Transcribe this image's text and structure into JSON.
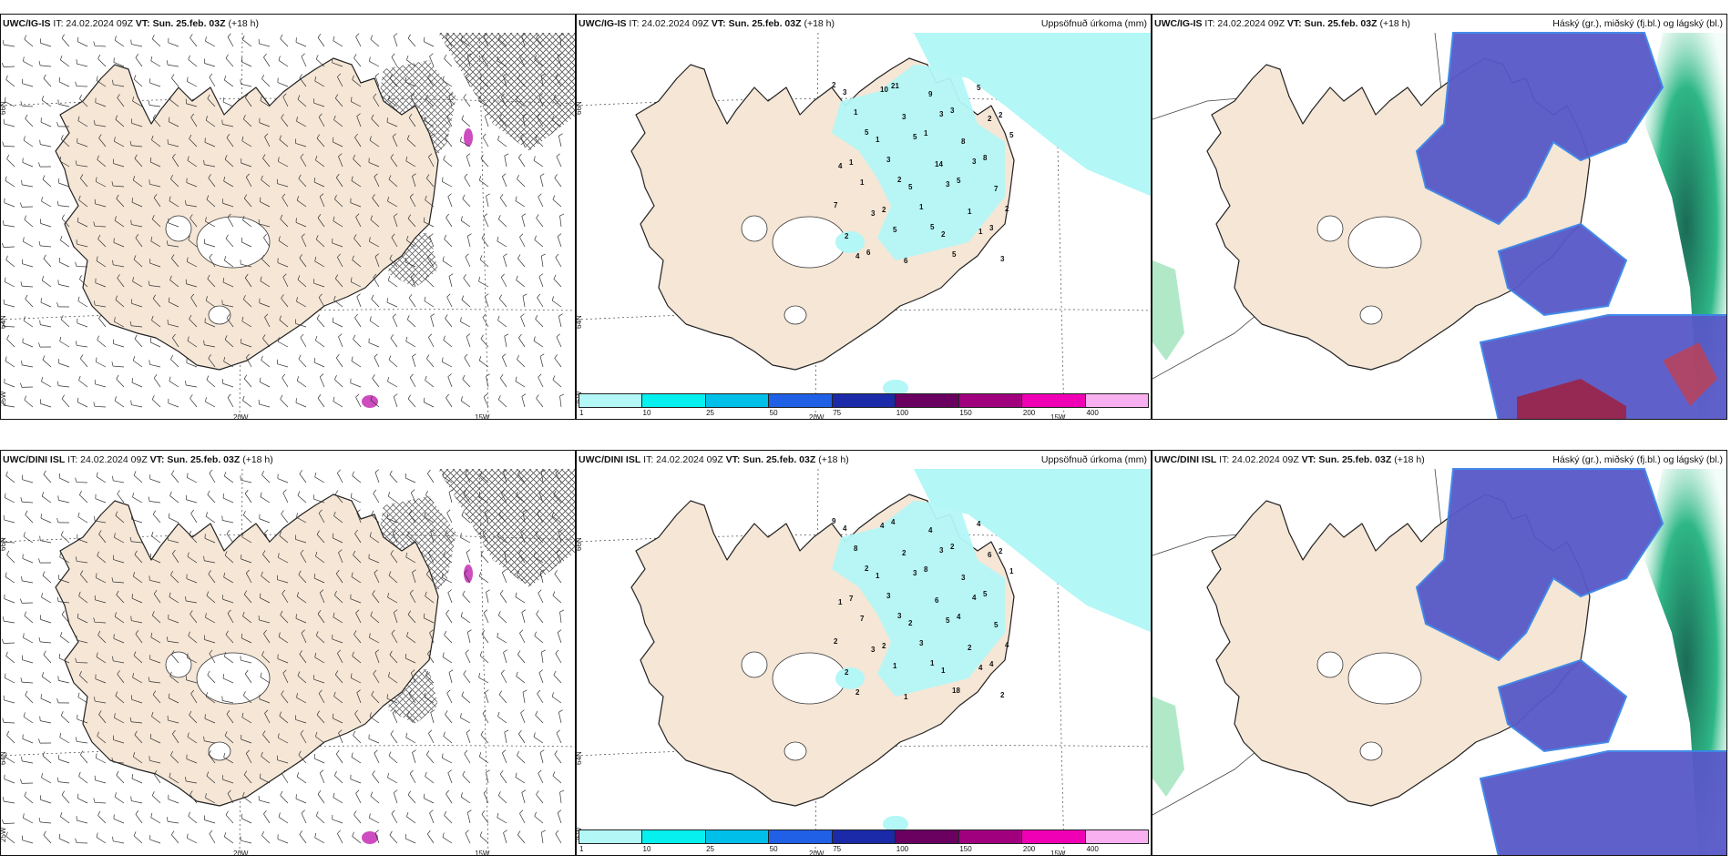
{
  "rows": [
    {
      "model": "UWC/IG-IS",
      "panels": [
        {
          "type": "wind",
          "model": "UWC/IG-IS",
          "it": "IT: 24.02.2024 09Z",
          "vt": "VT: Sun. 25.feb. 03Z",
          "lead": "(+18 h)",
          "right": ""
        },
        {
          "type": "precip",
          "model": "UWC/IG-IS",
          "it": "IT: 24.02.2024 09Z",
          "vt": "VT: Sun. 25.feb. 03Z",
          "lead": "(+18 h)",
          "right": "Uppsöfnuð úrkoma (mm)"
        },
        {
          "type": "clouds",
          "model": "UWC/IG-IS",
          "it": "IT: 24.02.2024 09Z",
          "vt": "VT: Sun. 25.feb. 03Z",
          "lead": "(+18 h)",
          "right": "Háský (gr.), miðský (fj.bl.) og lágský (bl.)"
        }
      ],
      "precip_values": [
        "2",
        "10",
        "9",
        "5",
        "3",
        "21",
        "3",
        "2",
        "1",
        "3",
        "3",
        "2",
        "5",
        "5",
        "8",
        "5",
        "1",
        "1",
        "3",
        "4",
        "3",
        "14",
        "8",
        "1",
        "2",
        "3",
        "7",
        "1",
        "5",
        "5",
        "2",
        "3",
        "1",
        "1",
        "7",
        "2",
        "5",
        "1",
        "2",
        "5",
        "2",
        "3",
        "4",
        "6",
        "5",
        "3",
        "6"
      ]
    },
    {
      "model": "UWC/DINI ISL",
      "panels": [
        {
          "type": "wind",
          "model": "UWC/DINI ISL",
          "it": "IT: 24.02.2024 09Z",
          "vt": "VT: Sun. 25.feb. 03Z",
          "lead": "(+18 h)",
          "right": ""
        },
        {
          "type": "precip",
          "model": "UWC/DINI ISL",
          "it": "IT: 24.02.2024 09Z",
          "vt": "VT: Sun. 25.feb. 03Z",
          "lead": "(+18 h)",
          "right": "Uppsöfnuð úrkoma (mm)"
        },
        {
          "type": "clouds",
          "model": "UWC/DINI ISL",
          "it": "IT: 24.02.2024 09Z",
          "vt": "VT: Sun. 25.feb. 03Z",
          "lead": "(+18 h)",
          "right": "Háský (gr.), miðský (fj.bl.) og lágský (bl.)"
        }
      ],
      "precip_values": [
        "9",
        "4",
        "4",
        "4",
        "4",
        "4",
        "3",
        "6",
        "8",
        "2",
        "2",
        "2",
        "2",
        "3",
        "3",
        "1",
        "1",
        "8",
        "4",
        "1",
        "3",
        "6",
        "5",
        "7",
        "3",
        "5",
        "5",
        "7",
        "2",
        "4",
        "4",
        "3",
        "3",
        "2",
        "2",
        "2",
        "1",
        "4",
        "2",
        "1",
        "1",
        "4",
        "2",
        "1",
        "18",
        "2"
      ]
    }
  ],
  "map_labels": {
    "lat_upper": "66N",
    "lat_lower": "64N",
    "lat_bottom": "25W",
    "lon_a": "20W",
    "lon_b": "15W"
  },
  "legend": {
    "colors": [
      "#b3f7f7",
      "#05f0ef",
      "#00bfe8",
      "#2060e6",
      "#1a2aa8",
      "#6a0060",
      "#a0007e",
      "#f000b4",
      "#f8b0f0"
    ],
    "ticks": [
      "1",
      "10",
      "25",
      "50",
      "75",
      "100",
      "150",
      "200",
      "400"
    ]
  },
  "colors": {
    "land": "#f5e6d6",
    "coast": "#222222",
    "precip_light": "#b3f7f7",
    "high_cloud_purple": "#5858c8",
    "mid_cloud_blue": "#3a84e8",
    "low_cloud_green": "#2fb787",
    "hatch": "#555555"
  }
}
